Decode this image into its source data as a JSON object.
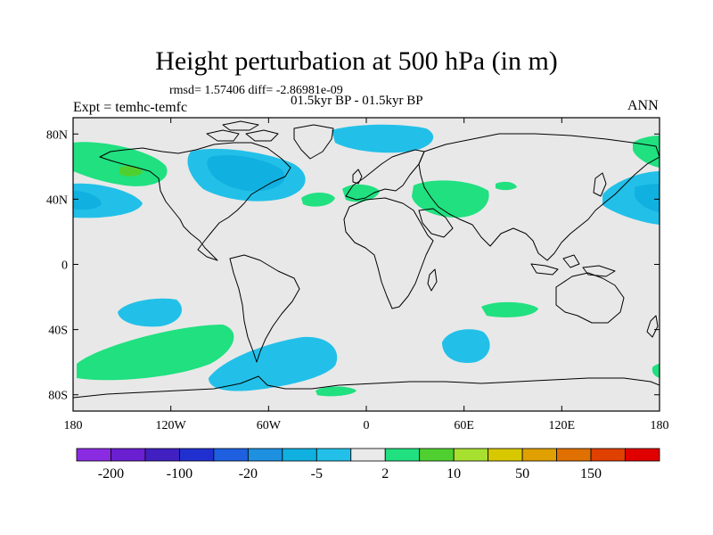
{
  "title": "Height perturbation at 500 hPa (in m)",
  "stats": "rmsd= 1.57406 diff= -2.86981e-09",
  "period": "01.5kyr BP - 01.5kyr BP",
  "expt": "Expt = temhc-temfc",
  "season": "ANN",
  "map": {
    "lon_range": [
      -180,
      180
    ],
    "lat_range": [
      -90,
      90
    ],
    "lon_ticks": [
      {
        "value": -180,
        "label": "180"
      },
      {
        "value": -120,
        "label": "120W"
      },
      {
        "value": -60,
        "label": "60W"
      },
      {
        "value": 0,
        "label": "0"
      },
      {
        "value": 60,
        "label": "60E"
      },
      {
        "value": 120,
        "label": "120E"
      },
      {
        "value": 180,
        "label": "180"
      }
    ],
    "lat_ticks": [
      {
        "value": 80,
        "label": "80N"
      },
      {
        "value": 40,
        "label": "40N"
      },
      {
        "value": 0,
        "label": "0"
      },
      {
        "value": -40,
        "label": "40S"
      },
      {
        "value": -80,
        "label": "80S"
      }
    ],
    "background_color": "#e8e8e8"
  },
  "colorbar": {
    "colors": [
      "#8a2be2",
      "#6a1fd0",
      "#4020c0",
      "#2030d0",
      "#1e60e0",
      "#1e90e0",
      "#10b0e0",
      "#22c0e8",
      "#eaeaea",
      "#20e080",
      "#50d030",
      "#a8e030",
      "#d8c800",
      "#e0a000",
      "#e07000",
      "#e04000",
      "#e00000"
    ],
    "labels": [
      {
        "index": 1,
        "text": "-200"
      },
      {
        "index": 3,
        "text": "-100"
      },
      {
        "index": 5,
        "text": "-20"
      },
      {
        "index": 7,
        "text": "-5"
      },
      {
        "index": 9,
        "text": "2"
      },
      {
        "index": 11,
        "text": "10"
      },
      {
        "index": 13,
        "text": "50"
      },
      {
        "index": 15,
        "text": "150"
      }
    ]
  }
}
